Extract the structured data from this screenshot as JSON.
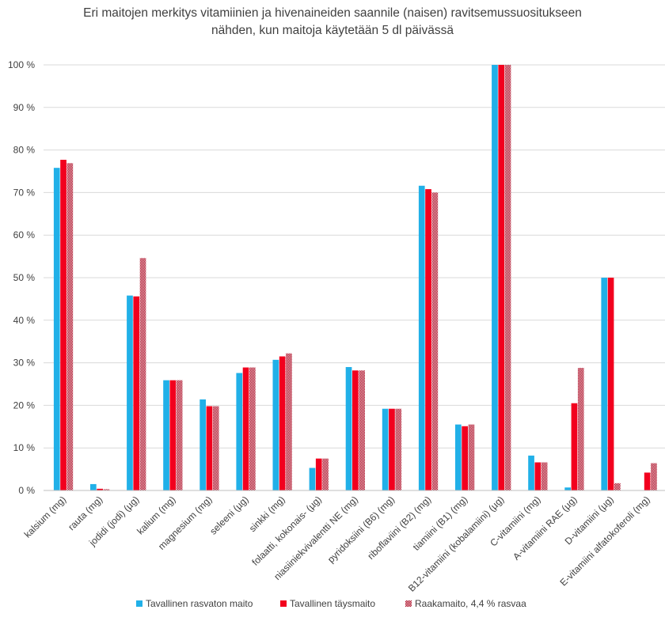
{
  "chart_data": {
    "type": "bar",
    "title": "Eri maitojen merkitys vitamiinien ja hivenaineiden saannile (naisen) ravitsemussuositukseen nähden, kun maitoja käytetään 5 dl päivässä",
    "title_lines": [
      "Eri maitojen merkitys vitamiinien ja hivenaineiden saannile (naisen) ravitsemussuositukseen",
      "nähden, kun maitoja käytetään 5 dl päivässä"
    ],
    "xlabel": "",
    "ylabel": "",
    "ylim": [
      0,
      100
    ],
    "y_ticks": [
      0,
      10,
      20,
      30,
      40,
      50,
      60,
      70,
      80,
      90,
      100
    ],
    "y_tick_labels": [
      "0 %",
      "10 %",
      "20 %",
      "30 %",
      "40 %",
      "50 %",
      "60 %",
      "70 %",
      "80 %",
      "90 %",
      "100 %"
    ],
    "grid": true,
    "legend_position": "bottom",
    "categories": [
      "kalsium (mg)",
      "rauta (mg)",
      "jodidi (jodi) (µg)",
      "kalium (mg)",
      "magnesium (mg)",
      "seleeni (µg)",
      "sinkki (mg)",
      "folaatti, kokonais- (µg)",
      "niasiiniekvivalentti NE (mg)",
      "pyridoksiini (B6) (mg)",
      "riboflaviini (B2) (mg)",
      "tiamiini (B1) (mg)",
      "B12-vitamiini (kobalamiini) (µg)",
      "C-vitamiini (mg)",
      "A-vitamiini RAE (µg)",
      "D-vitamiini (µg)",
      "E-vitamiini alfatokoferoli (mg)"
    ],
    "series": [
      {
        "name": "Tavallinen rasvaton maito",
        "color": "#21B0E8",
        "pattern": "solid",
        "values": [
          75.8,
          1.5,
          45.8,
          25.9,
          21.4,
          27.6,
          30.7,
          5.3,
          29.0,
          19.2,
          71.6,
          15.5,
          100,
          8.2,
          0.7,
          50.0,
          0
        ]
      },
      {
        "name": "Tavallinen täysmaito",
        "color": "#F2001E",
        "pattern": "solid",
        "values": [
          77.7,
          0.4,
          45.6,
          25.9,
          19.8,
          28.9,
          31.5,
          7.5,
          28.2,
          19.2,
          70.8,
          15.1,
          100,
          6.6,
          20.5,
          50.0,
          4.2
        ]
      },
      {
        "name": "Raakamaito, 4,4 % rasvaa",
        "color": "#B0001E",
        "pattern": "checker",
        "values": [
          76.9,
          0.3,
          54.6,
          25.9,
          19.8,
          28.9,
          32.2,
          7.5,
          28.2,
          19.2,
          70.0,
          15.5,
          100,
          6.6,
          28.8,
          1.7,
          6.4
        ]
      }
    ]
  }
}
